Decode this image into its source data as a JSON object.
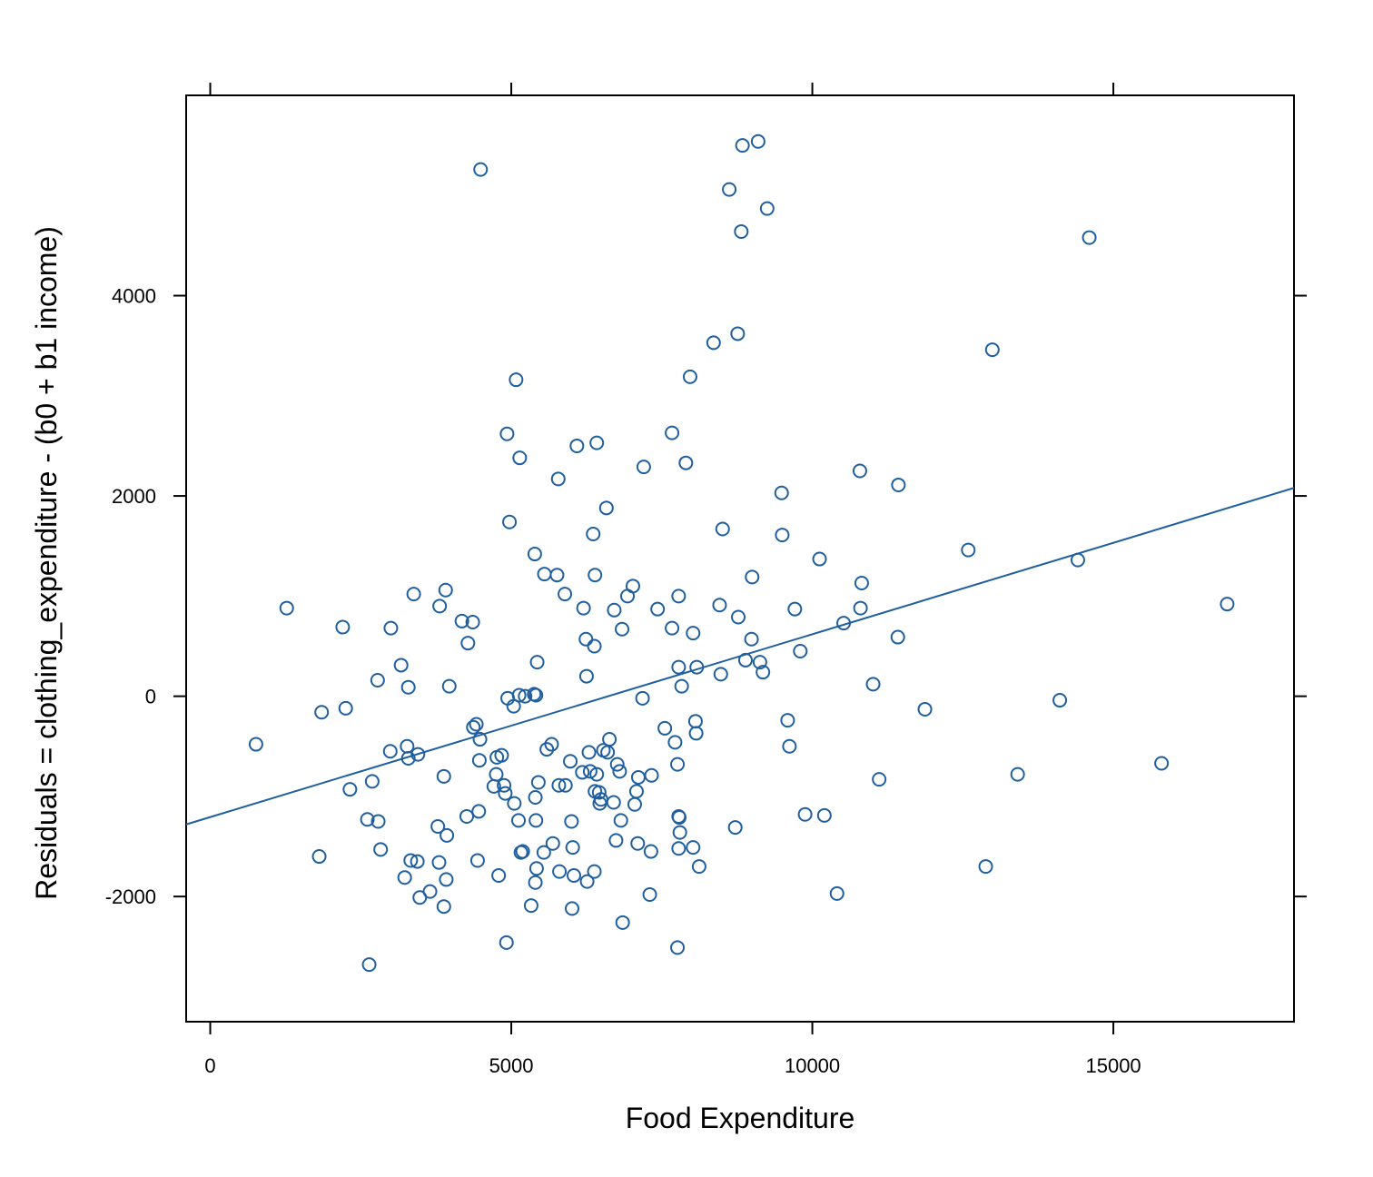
{
  "chart_data": {
    "type": "scatter",
    "title": "",
    "xlabel": "Food Expenditure",
    "ylabel": "Residuals = clothing_expenditure - (b0 + b1 income)",
    "xlim": [
      -400,
      18000
    ],
    "ylim": [
      -3250,
      6000
    ],
    "xticks": [
      0,
      5000,
      10000,
      15000
    ],
    "yticks": [
      -2000,
      0,
      2000,
      4000
    ],
    "grid": false,
    "legend": "none",
    "color": "#1f5fa0",
    "fit_line": {
      "x": [
        -400,
        18000
      ],
      "y": [
        -1280,
        2080
      ]
    },
    "points": [
      [
        760,
        -480
      ],
      [
        1270,
        880
      ],
      [
        1810,
        -1600
      ],
      [
        1850,
        -160
      ],
      [
        2200,
        690
      ],
      [
        2250,
        -120
      ],
      [
        2320,
        -930
      ],
      [
        2610,
        -1230
      ],
      [
        2640,
        -2680
      ],
      [
        2690,
        -850
      ],
      [
        2780,
        160
      ],
      [
        2790,
        -1250
      ],
      [
        2830,
        -1530
      ],
      [
        2990,
        -550
      ],
      [
        3000,
        680
      ],
      [
        3170,
        310
      ],
      [
        3230,
        -1810
      ],
      [
        3270,
        -500
      ],
      [
        3290,
        90
      ],
      [
        3290,
        -620
      ],
      [
        3330,
        -1640
      ],
      [
        3380,
        1020
      ],
      [
        3440,
        -1650
      ],
      [
        3450,
        -580
      ],
      [
        3480,
        -2010
      ],
      [
        3650,
        -1950
      ],
      [
        3780,
        -1300
      ],
      [
        3800,
        -1660
      ],
      [
        3810,
        900
      ],
      [
        3880,
        -2100
      ],
      [
        3880,
        -800
      ],
      [
        3910,
        1060
      ],
      [
        3920,
        -1830
      ],
      [
        3930,
        -1390
      ],
      [
        3970,
        100
      ],
      [
        4180,
        750
      ],
      [
        4260,
        -1200
      ],
      [
        4280,
        530
      ],
      [
        4360,
        740
      ],
      [
        4370,
        -310
      ],
      [
        4420,
        -280
      ],
      [
        4440,
        -1640
      ],
      [
        4460,
        -1150
      ],
      [
        4470,
        -640
      ],
      [
        4480,
        -430
      ],
      [
        4490,
        5260
      ],
      [
        4710,
        -900
      ],
      [
        4750,
        -780
      ],
      [
        4760,
        -610
      ],
      [
        4790,
        -1790
      ],
      [
        4840,
        -590
      ],
      [
        4880,
        -890
      ],
      [
        4900,
        -970
      ],
      [
        4920,
        -2460
      ],
      [
        4930,
        2620
      ],
      [
        4940,
        -20
      ],
      [
        4970,
        1740
      ],
      [
        5040,
        -100
      ],
      [
        5050,
        -1070
      ],
      [
        5080,
        3160
      ],
      [
        5120,
        -1240
      ],
      [
        5130,
        10
      ],
      [
        5140,
        2380
      ],
      [
        5160,
        -1560
      ],
      [
        5190,
        -1550
      ],
      [
        5230,
        0
      ],
      [
        5330,
        -2090
      ],
      [
        5380,
        20
      ],
      [
        5390,
        1420
      ],
      [
        5400,
        -1010
      ],
      [
        5400,
        -1860
      ],
      [
        5410,
        -1240
      ],
      [
        5410,
        10
      ],
      [
        5420,
        -1720
      ],
      [
        5430,
        340
      ],
      [
        5450,
        -860
      ],
      [
        5540,
        -1560
      ],
      [
        5550,
        1220
      ],
      [
        5590,
        -530
      ],
      [
        5670,
        -480
      ],
      [
        5690,
        -1470
      ],
      [
        5760,
        1210
      ],
      [
        5780,
        2170
      ],
      [
        5790,
        -890
      ],
      [
        5800,
        -1750
      ],
      [
        5890,
        1020
      ],
      [
        5900,
        -890
      ],
      [
        5980,
        -650
      ],
      [
        6000,
        -1250
      ],
      [
        6010,
        -2120
      ],
      [
        6020,
        -1510
      ],
      [
        6040,
        -1790
      ],
      [
        6090,
        2500
      ],
      [
        6180,
        -760
      ],
      [
        6200,
        880
      ],
      [
        6240,
        570
      ],
      [
        6250,
        200
      ],
      [
        6260,
        -1850
      ],
      [
        6290,
        -560
      ],
      [
        6310,
        -750
      ],
      [
        6360,
        1620
      ],
      [
        6380,
        500
      ],
      [
        6380,
        -1750
      ],
      [
        6390,
        1210
      ],
      [
        6390,
        -950
      ],
      [
        6420,
        2530
      ],
      [
        6420,
        -780
      ],
      [
        6460,
        -960
      ],
      [
        6470,
        -1070
      ],
      [
        6490,
        -1030
      ],
      [
        6530,
        -540
      ],
      [
        6580,
        1880
      ],
      [
        6600,
        -560
      ],
      [
        6630,
        -430
      ],
      [
        6700,
        -1060
      ],
      [
        6710,
        860
      ],
      [
        6740,
        -1440
      ],
      [
        6760,
        -680
      ],
      [
        6800,
        -750
      ],
      [
        6820,
        -1240
      ],
      [
        6840,
        670
      ],
      [
        6850,
        -2260
      ],
      [
        6930,
        1000
      ],
      [
        7020,
        1100
      ],
      [
        7050,
        -1080
      ],
      [
        7080,
        -950
      ],
      [
        7100,
        -1470
      ],
      [
        7110,
        -810
      ],
      [
        7180,
        -20
      ],
      [
        7200,
        2290
      ],
      [
        7300,
        -1980
      ],
      [
        7320,
        -1550
      ],
      [
        7330,
        -790
      ],
      [
        7430,
        870
      ],
      [
        7550,
        -320
      ],
      [
        7670,
        680
      ],
      [
        7670,
        2630
      ],
      [
        7720,
        -460
      ],
      [
        7760,
        -680
      ],
      [
        7760,
        -2510
      ],
      [
        7780,
        1000
      ],
      [
        7780,
        -1200
      ],
      [
        7780,
        -1520
      ],
      [
        7780,
        290
      ],
      [
        7790,
        -1210
      ],
      [
        7800,
        -1360
      ],
      [
        7830,
        100
      ],
      [
        7900,
        2330
      ],
      [
        7970,
        3190
      ],
      [
        8020,
        -1510
      ],
      [
        8020,
        630
      ],
      [
        8060,
        -250
      ],
      [
        8070,
        -370
      ],
      [
        8080,
        290
      ],
      [
        8120,
        -1700
      ],
      [
        8360,
        3530
      ],
      [
        8460,
        910
      ],
      [
        8480,
        220
      ],
      [
        8510,
        1670
      ],
      [
        8620,
        5060
      ],
      [
        8720,
        -1310
      ],
      [
        8760,
        3620
      ],
      [
        8770,
        790
      ],
      [
        8820,
        4640
      ],
      [
        8840,
        5500
      ],
      [
        8890,
        360
      ],
      [
        8990,
        570
      ],
      [
        9000,
        1190
      ],
      [
        9100,
        5540
      ],
      [
        9130,
        340
      ],
      [
        9180,
        240
      ],
      [
        9250,
        4870
      ],
      [
        9490,
        2030
      ],
      [
        9500,
        1610
      ],
      [
        9590,
        -240
      ],
      [
        9620,
        -500
      ],
      [
        9710,
        870
      ],
      [
        9800,
        450
      ],
      [
        9880,
        -1180
      ],
      [
        10120,
        1370
      ],
      [
        10200,
        -1190
      ],
      [
        10410,
        -1970
      ],
      [
        10520,
        730
      ],
      [
        10790,
        2250
      ],
      [
        10800,
        880
      ],
      [
        10820,
        1130
      ],
      [
        11010,
        120
      ],
      [
        11110,
        -830
      ],
      [
        11420,
        590
      ],
      [
        11430,
        2110
      ],
      [
        11870,
        -130
      ],
      [
        12590,
        1460
      ],
      [
        12880,
        -1700
      ],
      [
        12990,
        3460
      ],
      [
        13410,
        -780
      ],
      [
        14110,
        -40
      ],
      [
        14410,
        1360
      ],
      [
        14600,
        4580
      ],
      [
        15800,
        -670
      ],
      [
        16890,
        920
      ]
    ]
  }
}
